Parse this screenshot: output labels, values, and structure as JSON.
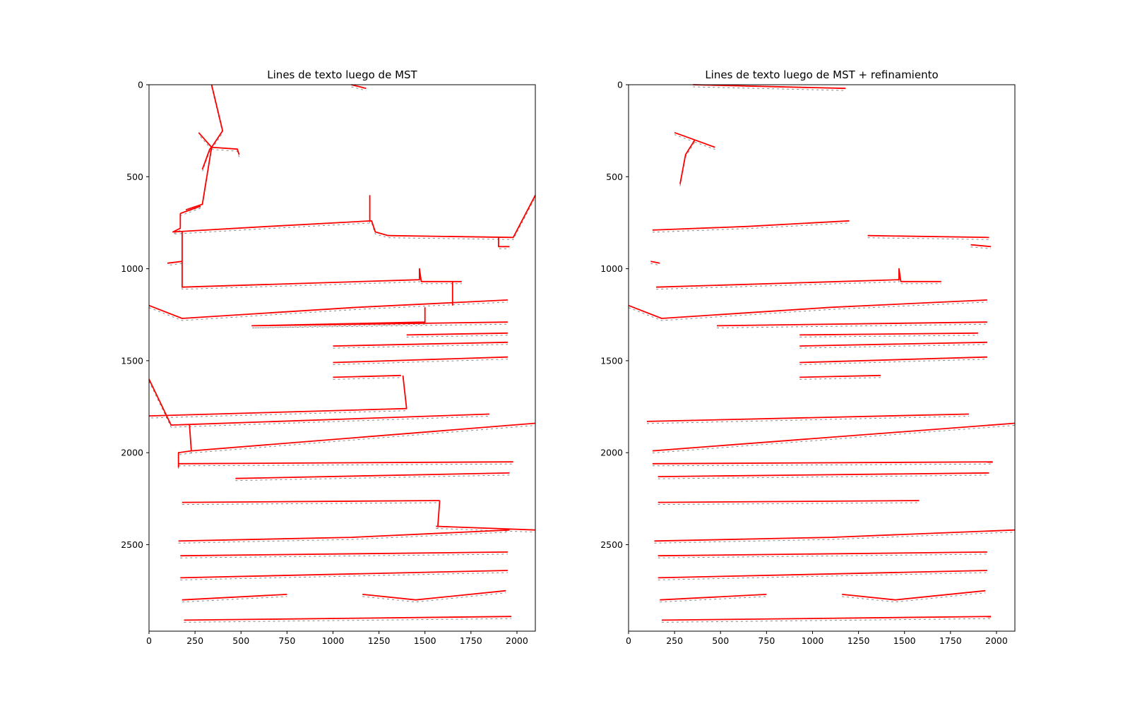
{
  "chart_data": [
    {
      "type": "line",
      "title": "Lines de texto luego de MST",
      "xlim": [
        0,
        2100
      ],
      "ylim": [
        2970,
        0
      ],
      "xticks": [
        0,
        250,
        500,
        750,
        1000,
        1250,
        1500,
        1750,
        2000
      ],
      "yticks": [
        0,
        500,
        1000,
        1500,
        2000,
        2500
      ],
      "line_color": "#ff0000",
      "background": "handwritten page image",
      "segments": [
        [
          [
            340,
            0
          ],
          [
            400,
            250
          ],
          [
            340,
            340
          ],
          [
            330,
            350
          ],
          [
            290,
            460
          ]
        ],
        [
          [
            340,
            340
          ],
          [
            270,
            260
          ]
        ],
        [
          [
            340,
            340
          ],
          [
            480,
            350
          ],
          [
            490,
            380
          ]
        ],
        [
          [
            340,
            340
          ],
          [
            290,
            650
          ],
          [
            200,
            680
          ]
        ],
        [
          [
            280,
            660
          ],
          [
            170,
            700
          ]
        ],
        [
          [
            170,
            700
          ],
          [
            170,
            780
          ],
          [
            130,
            800
          ],
          [
            650,
            770
          ],
          [
            1210,
            740
          ],
          [
            1230,
            800
          ],
          [
            1300,
            820
          ],
          [
            1980,
            830
          ],
          [
            2100,
            600
          ]
        ],
        [
          [
            1200,
            740
          ],
          [
            1200,
            600
          ]
        ],
        [
          [
            1900,
            830
          ],
          [
            1900,
            880
          ],
          [
            1960,
            880
          ]
        ],
        [
          [
            180,
            800
          ],
          [
            180,
            960
          ],
          [
            100,
            970
          ]
        ],
        [
          [
            180,
            960
          ],
          [
            180,
            1100
          ],
          [
            1470,
            1060
          ],
          [
            1470,
            1000
          ],
          [
            1480,
            1070
          ],
          [
            1700,
            1070
          ]
        ],
        [
          [
            1650,
            1070
          ],
          [
            1650,
            1200
          ]
        ],
        [
          [
            0,
            1200
          ],
          [
            180,
            1270
          ],
          [
            1130,
            1210
          ],
          [
            1950,
            1170
          ]
        ],
        [
          [
            1500,
            1210
          ],
          [
            1500,
            1290
          ],
          [
            560,
            1310
          ],
          [
            1950,
            1290
          ]
        ],
        [
          [
            1400,
            1360
          ],
          [
            1950,
            1350
          ]
        ],
        [
          [
            1000,
            1420
          ],
          [
            1950,
            1400
          ]
        ],
        [
          [
            1000,
            1510
          ],
          [
            1950,
            1480
          ]
        ],
        [
          [
            1000,
            1590
          ],
          [
            1370,
            1580
          ]
        ],
        [
          [
            1380,
            1580
          ],
          [
            1400,
            1760
          ],
          [
            0,
            1800
          ]
        ],
        [
          [
            0,
            1600
          ],
          [
            120,
            1850
          ],
          [
            1850,
            1790
          ]
        ],
        [
          [
            220,
            1850
          ],
          [
            230,
            1990
          ],
          [
            2100,
            1840
          ]
        ],
        [
          [
            230,
            1990
          ],
          [
            160,
            2000
          ],
          [
            160,
            2080
          ]
        ],
        [
          [
            160,
            2060
          ],
          [
            1980,
            2050
          ]
        ],
        [
          [
            470,
            2140
          ],
          [
            1960,
            2110
          ]
        ],
        [
          [
            180,
            2270
          ],
          [
            1580,
            2260
          ]
        ],
        [
          [
            1580,
            2260
          ],
          [
            1570,
            2400
          ]
        ],
        [
          [
            1560,
            2400
          ],
          [
            2100,
            2420
          ]
        ],
        [
          [
            160,
            2480
          ],
          [
            1100,
            2460
          ],
          [
            1960,
            2420
          ]
        ],
        [
          [
            170,
            2560
          ],
          [
            1950,
            2540
          ]
        ],
        [
          [
            170,
            2680
          ],
          [
            1950,
            2640
          ]
        ],
        [
          [
            180,
            2800
          ],
          [
            750,
            2770
          ]
        ],
        [
          [
            1160,
            2770
          ],
          [
            1450,
            2800
          ],
          [
            1940,
            2750
          ]
        ],
        [
          [
            190,
            2910
          ],
          [
            1970,
            2890
          ]
        ],
        [
          [
            1100,
            0
          ],
          [
            1180,
            20
          ]
        ]
      ]
    },
    {
      "type": "line",
      "title": "Lines de texto luego de MST + refinamiento",
      "xlim": [
        0,
        2100
      ],
      "ylim": [
        2970,
        0
      ],
      "xticks": [
        0,
        250,
        500,
        750,
        1000,
        1250,
        1500,
        1750,
        2000
      ],
      "yticks": [
        0,
        500,
        1000,
        1500,
        2000,
        2500
      ],
      "line_color": "#ff0000",
      "background": "handwritten page image",
      "segments": [
        [
          [
            280,
            540
          ],
          [
            310,
            380
          ],
          [
            360,
            300
          ]
        ],
        [
          [
            360,
            300
          ],
          [
            470,
            340
          ]
        ],
        [
          [
            360,
            300
          ],
          [
            250,
            260
          ]
        ],
        [
          [
            130,
            790
          ],
          [
            650,
            770
          ],
          [
            1200,
            740
          ]
        ],
        [
          [
            1300,
            820
          ],
          [
            1960,
            830
          ]
        ],
        [
          [
            1860,
            870
          ],
          [
            1970,
            880
          ]
        ],
        [
          [
            120,
            960
          ],
          [
            170,
            970
          ]
        ],
        [
          [
            150,
            1100
          ],
          [
            1470,
            1060
          ],
          [
            1470,
            1000
          ],
          [
            1480,
            1070
          ],
          [
            1700,
            1070
          ]
        ],
        [
          [
            0,
            1200
          ],
          [
            180,
            1270
          ],
          [
            1100,
            1210
          ],
          [
            1950,
            1170
          ]
        ],
        [
          [
            480,
            1310
          ],
          [
            1950,
            1290
          ]
        ],
        [
          [
            930,
            1360
          ],
          [
            1900,
            1350
          ]
        ],
        [
          [
            930,
            1420
          ],
          [
            1950,
            1400
          ]
        ],
        [
          [
            930,
            1510
          ],
          [
            1950,
            1480
          ]
        ],
        [
          [
            930,
            1590
          ],
          [
            1370,
            1580
          ]
        ],
        [
          [
            100,
            1830
          ],
          [
            1850,
            1790
          ]
        ],
        [
          [
            130,
            1990
          ],
          [
            2100,
            1840
          ]
        ],
        [
          [
            130,
            2060
          ],
          [
            1980,
            2050
          ]
        ],
        [
          [
            160,
            2130
          ],
          [
            1960,
            2110
          ]
        ],
        [
          [
            160,
            2270
          ],
          [
            1580,
            2260
          ]
        ],
        [
          [
            140,
            2480
          ],
          [
            1100,
            2460
          ],
          [
            2100,
            2420
          ]
        ],
        [
          [
            160,
            2560
          ],
          [
            1950,
            2540
          ]
        ],
        [
          [
            160,
            2680
          ],
          [
            1950,
            2640
          ]
        ],
        [
          [
            170,
            2800
          ],
          [
            750,
            2770
          ]
        ],
        [
          [
            1160,
            2770
          ],
          [
            1450,
            2800
          ],
          [
            1940,
            2750
          ]
        ],
        [
          [
            180,
            2910
          ],
          [
            1970,
            2890
          ]
        ],
        [
          [
            350,
            0
          ],
          [
            1180,
            20
          ]
        ]
      ]
    }
  ]
}
